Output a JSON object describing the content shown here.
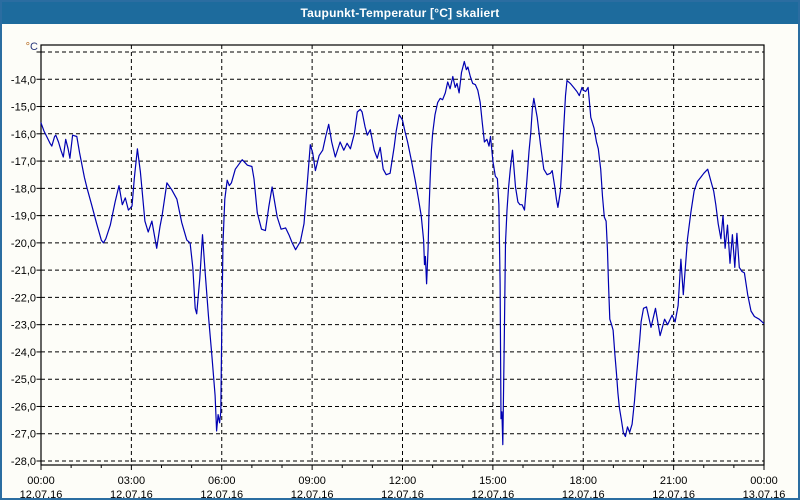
{
  "window": {
    "title": "Taupunkt-Temperatur [°C] skaliert"
  },
  "chart_data": {
    "type": "line",
    "title": "Taupunkt-Temperatur [°C] skaliert",
    "y_axis_unit": {
      "degree": "°",
      "letter": "C",
      "degree_color": "#b5691f",
      "letter_color": "#26367a"
    },
    "ylim": [
      -28.0,
      -13.0
    ],
    "xlim_hours": [
      0,
      24
    ],
    "grid": "dashed",
    "legend": "none",
    "line_color": "#0000b2",
    "y_ticks": [
      "-14,0",
      "-15,0",
      "-16,0",
      "-17,0",
      "-18,0",
      "-19,0",
      "-20,0",
      "-21,0",
      "-22,0",
      "-23,0",
      "-24,0",
      "-25,0",
      "-26,0",
      "-27,0",
      "-28,0"
    ],
    "x_ticks": [
      {
        "hour": 0,
        "time": "00:00",
        "date": "12.07.16"
      },
      {
        "hour": 3,
        "time": "03:00",
        "date": "12.07.16"
      },
      {
        "hour": 6,
        "time": "06:00",
        "date": "12.07.16"
      },
      {
        "hour": 9,
        "time": "09:00",
        "date": "12.07.16"
      },
      {
        "hour": 12,
        "time": "12:00",
        "date": "12.07.16"
      },
      {
        "hour": 15,
        "time": "15:00",
        "date": "12.07.16"
      },
      {
        "hour": 18,
        "time": "18:00",
        "date": "12.07.16"
      },
      {
        "hour": 21,
        "time": "21:00",
        "date": "12.07.16"
      },
      {
        "hour": 24,
        "time": "00:00",
        "date": "13.07.16"
      }
    ],
    "series": [
      {
        "name": "Taupunkt-Temperatur",
        "points": [
          [
            0.0,
            -15.6
          ],
          [
            0.1,
            -15.9
          ],
          [
            0.19,
            -16.1
          ],
          [
            0.3,
            -16.35
          ],
          [
            0.36,
            -16.45
          ],
          [
            0.45,
            -16.1
          ],
          [
            0.49,
            -16.05
          ],
          [
            0.58,
            -16.3
          ],
          [
            0.66,
            -16.6
          ],
          [
            0.74,
            -16.85
          ],
          [
            0.82,
            -16.2
          ],
          [
            0.9,
            -16.55
          ],
          [
            0.96,
            -16.9
          ],
          [
            1.05,
            -16.05
          ],
          [
            1.19,
            -16.1
          ],
          [
            1.28,
            -16.7
          ],
          [
            1.44,
            -17.6
          ],
          [
            1.53,
            -18.0
          ],
          [
            1.68,
            -18.6
          ],
          [
            1.85,
            -19.3
          ],
          [
            2.0,
            -19.9
          ],
          [
            2.07,
            -20.0
          ],
          [
            2.15,
            -19.85
          ],
          [
            2.3,
            -19.35
          ],
          [
            2.46,
            -18.5
          ],
          [
            2.59,
            -17.9
          ],
          [
            2.7,
            -18.6
          ],
          [
            2.8,
            -18.35
          ],
          [
            2.9,
            -18.8
          ],
          [
            3.02,
            -18.65
          ],
          [
            3.1,
            -17.6
          ],
          [
            3.2,
            -16.55
          ],
          [
            3.3,
            -17.4
          ],
          [
            3.45,
            -19.2
          ],
          [
            3.56,
            -19.6
          ],
          [
            3.68,
            -19.2
          ],
          [
            3.84,
            -20.2
          ],
          [
            3.95,
            -19.4
          ],
          [
            4.02,
            -19.0
          ],
          [
            4.18,
            -17.8
          ],
          [
            4.34,
            -18.05
          ],
          [
            4.51,
            -18.4
          ],
          [
            4.67,
            -19.25
          ],
          [
            4.84,
            -19.9
          ],
          [
            4.95,
            -20.0
          ],
          [
            5.04,
            -20.9
          ],
          [
            5.12,
            -22.4
          ],
          [
            5.17,
            -22.6
          ],
          [
            5.27,
            -21.3
          ],
          [
            5.36,
            -19.7
          ],
          [
            5.45,
            -21.1
          ],
          [
            5.56,
            -22.7
          ],
          [
            5.67,
            -24.1
          ],
          [
            5.78,
            -25.6
          ],
          [
            5.83,
            -26.9
          ],
          [
            5.88,
            -26.3
          ],
          [
            5.93,
            -26.6
          ],
          [
            5.97,
            -26.2
          ],
          [
            6.0,
            -23.0
          ],
          [
            6.04,
            -20.0
          ],
          [
            6.1,
            -18.4
          ],
          [
            6.18,
            -17.7
          ],
          [
            6.25,
            -17.9
          ],
          [
            6.32,
            -17.8
          ],
          [
            6.45,
            -17.3
          ],
          [
            6.68,
            -16.95
          ],
          [
            6.85,
            -17.15
          ],
          [
            7.0,
            -17.2
          ],
          [
            7.07,
            -17.65
          ],
          [
            7.18,
            -18.9
          ],
          [
            7.32,
            -19.5
          ],
          [
            7.45,
            -19.55
          ],
          [
            7.56,
            -18.7
          ],
          [
            7.67,
            -17.95
          ],
          [
            7.84,
            -19.05
          ],
          [
            7.97,
            -19.5
          ],
          [
            8.12,
            -19.45
          ],
          [
            8.23,
            -19.7
          ],
          [
            8.34,
            -20.0
          ],
          [
            8.45,
            -20.25
          ],
          [
            8.61,
            -19.95
          ],
          [
            8.73,
            -19.3
          ],
          [
            8.84,
            -17.8
          ],
          [
            8.94,
            -16.4
          ],
          [
            9.02,
            -16.7
          ],
          [
            9.11,
            -17.35
          ],
          [
            9.23,
            -16.8
          ],
          [
            9.35,
            -16.6
          ],
          [
            9.45,
            -16.1
          ],
          [
            9.55,
            -15.65
          ],
          [
            9.65,
            -16.3
          ],
          [
            9.77,
            -16.85
          ],
          [
            9.93,
            -16.3
          ],
          [
            10.05,
            -16.6
          ],
          [
            10.16,
            -16.35
          ],
          [
            10.27,
            -16.55
          ],
          [
            10.4,
            -16.0
          ],
          [
            10.5,
            -15.2
          ],
          [
            10.6,
            -15.1
          ],
          [
            10.66,
            -15.2
          ],
          [
            10.76,
            -15.75
          ],
          [
            10.83,
            -16.05
          ],
          [
            10.93,
            -15.85
          ],
          [
            11.06,
            -16.6
          ],
          [
            11.16,
            -16.9
          ],
          [
            11.26,
            -16.5
          ],
          [
            11.36,
            -17.3
          ],
          [
            11.46,
            -17.5
          ],
          [
            11.59,
            -17.45
          ],
          [
            11.72,
            -16.5
          ],
          [
            11.79,
            -15.9
          ],
          [
            11.89,
            -15.3
          ],
          [
            12.0,
            -15.5
          ],
          [
            12.08,
            -15.9
          ],
          [
            12.17,
            -16.3
          ],
          [
            12.3,
            -17.0
          ],
          [
            12.42,
            -17.7
          ],
          [
            12.53,
            -18.4
          ],
          [
            12.62,
            -19.0
          ],
          [
            12.7,
            -19.9
          ],
          [
            12.73,
            -20.8
          ],
          [
            12.76,
            -20.5
          ],
          [
            12.8,
            -21.5
          ],
          [
            12.85,
            -20.2
          ],
          [
            12.88,
            -18.8
          ],
          [
            12.92,
            -17.6
          ],
          [
            12.96,
            -16.6
          ],
          [
            13.0,
            -16.0
          ],
          [
            13.08,
            -15.3
          ],
          [
            13.17,
            -14.85
          ],
          [
            13.25,
            -14.7
          ],
          [
            13.33,
            -14.75
          ],
          [
            13.42,
            -14.5
          ],
          [
            13.5,
            -14.1
          ],
          [
            13.58,
            -14.35
          ],
          [
            13.67,
            -13.9
          ],
          [
            13.75,
            -14.3
          ],
          [
            13.81,
            -14.15
          ],
          [
            13.88,
            -14.5
          ],
          [
            13.96,
            -13.75
          ],
          [
            14.05,
            -13.35
          ],
          [
            14.12,
            -13.65
          ],
          [
            14.17,
            -13.55
          ],
          [
            14.25,
            -13.9
          ],
          [
            14.33,
            -14.15
          ],
          [
            14.42,
            -14.2
          ],
          [
            14.5,
            -14.4
          ],
          [
            14.58,
            -14.85
          ],
          [
            14.65,
            -15.6
          ],
          [
            14.72,
            -16.3
          ],
          [
            14.8,
            -16.2
          ],
          [
            14.87,
            -16.45
          ],
          [
            14.92,
            -16.1
          ],
          [
            15.0,
            -17.0
          ],
          [
            15.08,
            -17.55
          ],
          [
            15.15,
            -17.65
          ],
          [
            15.2,
            -18.6
          ],
          [
            15.24,
            -21.5
          ],
          [
            15.27,
            -26.45
          ],
          [
            15.3,
            -26.2
          ],
          [
            15.33,
            -27.4
          ],
          [
            15.38,
            -23.5
          ],
          [
            15.42,
            -20.0
          ],
          [
            15.47,
            -18.8
          ],
          [
            15.52,
            -18.0
          ],
          [
            15.58,
            -17.3
          ],
          [
            15.65,
            -16.6
          ],
          [
            15.75,
            -17.95
          ],
          [
            15.83,
            -18.5
          ],
          [
            15.9,
            -18.6
          ],
          [
            15.97,
            -18.6
          ],
          [
            16.05,
            -18.8
          ],
          [
            16.13,
            -17.7
          ],
          [
            16.2,
            -16.65
          ],
          [
            16.26,
            -15.95
          ],
          [
            16.31,
            -15.1
          ],
          [
            16.36,
            -14.7
          ],
          [
            16.47,
            -15.4
          ],
          [
            16.58,
            -16.4
          ],
          [
            16.69,
            -17.3
          ],
          [
            16.8,
            -17.5
          ],
          [
            16.91,
            -17.45
          ],
          [
            16.97,
            -17.35
          ],
          [
            17.05,
            -17.9
          ],
          [
            17.11,
            -18.4
          ],
          [
            17.16,
            -18.7
          ],
          [
            17.24,
            -18.1
          ],
          [
            17.3,
            -17.0
          ],
          [
            17.35,
            -15.8
          ],
          [
            17.41,
            -14.6
          ],
          [
            17.46,
            -14.05
          ],
          [
            17.57,
            -14.15
          ],
          [
            17.68,
            -14.3
          ],
          [
            17.79,
            -14.45
          ],
          [
            17.87,
            -14.6
          ],
          [
            17.96,
            -14.3
          ],
          [
            18.0,
            -14.4
          ],
          [
            18.08,
            -14.45
          ],
          [
            18.16,
            -14.3
          ],
          [
            18.21,
            -14.9
          ],
          [
            18.25,
            -15.4
          ],
          [
            18.36,
            -15.8
          ],
          [
            18.44,
            -16.3
          ],
          [
            18.5,
            -16.55
          ],
          [
            18.58,
            -17.3
          ],
          [
            18.64,
            -18.3
          ],
          [
            18.7,
            -19.05
          ],
          [
            18.76,
            -19.2
          ],
          [
            18.8,
            -20.2
          ],
          [
            18.84,
            -21.6
          ],
          [
            18.88,
            -22.8
          ],
          [
            18.94,
            -23.0
          ],
          [
            18.99,
            -23.2
          ],
          [
            19.05,
            -24.1
          ],
          [
            19.1,
            -24.75
          ],
          [
            19.15,
            -25.5
          ],
          [
            19.2,
            -26.05
          ],
          [
            19.26,
            -26.45
          ],
          [
            19.33,
            -26.95
          ],
          [
            19.4,
            -27.1
          ],
          [
            19.47,
            -26.75
          ],
          [
            19.54,
            -26.95
          ],
          [
            19.62,
            -26.65
          ],
          [
            19.7,
            -25.8
          ],
          [
            19.75,
            -25.1
          ],
          [
            19.81,
            -24.35
          ],
          [
            19.87,
            -23.6
          ],
          [
            19.92,
            -22.9
          ],
          [
            20.0,
            -22.4
          ],
          [
            20.1,
            -22.35
          ],
          [
            20.25,
            -23.1
          ],
          [
            20.4,
            -22.4
          ],
          [
            20.55,
            -23.4
          ],
          [
            20.7,
            -22.8
          ],
          [
            20.8,
            -23.0
          ],
          [
            20.95,
            -22.65
          ],
          [
            21.05,
            -22.9
          ],
          [
            21.15,
            -22.3
          ],
          [
            21.24,
            -20.6
          ],
          [
            21.32,
            -21.9
          ],
          [
            21.46,
            -19.85
          ],
          [
            21.57,
            -18.9
          ],
          [
            21.68,
            -18.1
          ],
          [
            21.79,
            -17.75
          ],
          [
            21.9,
            -17.6
          ],
          [
            22.0,
            -17.45
          ],
          [
            22.13,
            -17.3
          ],
          [
            22.24,
            -17.75
          ],
          [
            22.33,
            -18.1
          ],
          [
            22.4,
            -18.6
          ],
          [
            22.48,
            -19.3
          ],
          [
            22.57,
            -19.85
          ],
          [
            22.64,
            -19.0
          ],
          [
            22.71,
            -20.2
          ],
          [
            22.79,
            -19.35
          ],
          [
            22.87,
            -20.75
          ],
          [
            22.95,
            -19.7
          ],
          [
            23.03,
            -20.9
          ],
          [
            23.1,
            -19.65
          ],
          [
            23.18,
            -20.9
          ],
          [
            23.27,
            -21.05
          ],
          [
            23.35,
            -21.1
          ],
          [
            23.46,
            -21.9
          ],
          [
            23.57,
            -22.5
          ],
          [
            23.68,
            -22.7
          ],
          [
            23.84,
            -22.8
          ],
          [
            23.99,
            -22.95
          ]
        ]
      }
    ]
  },
  "colors": {
    "titlebar_bg": "#1d6b9d",
    "titlebar_text": "#ffffff",
    "frame_border": "#2b6da1",
    "page_bg": "#fdfdf8",
    "grid": "#000000",
    "series_line": "#0000b2"
  }
}
